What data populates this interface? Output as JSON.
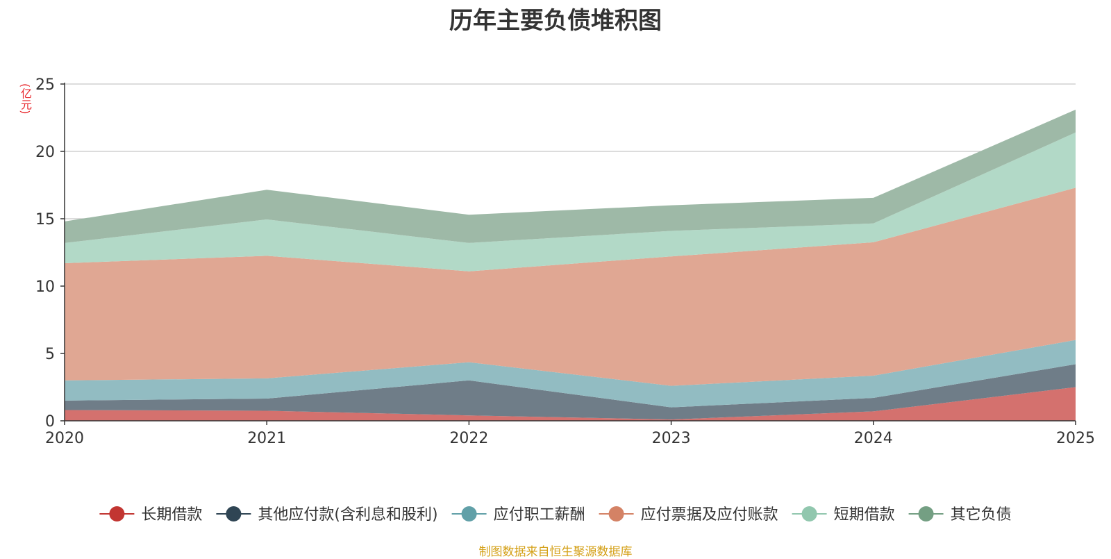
{
  "chart_data": {
    "type": "area",
    "stacked": true,
    "title": "历年主要负债堆积图",
    "ylabel": "(亿元)",
    "x": [
      "2020",
      "2021",
      "2022",
      "2023",
      "2024",
      "2025"
    ],
    "yticks": [
      "0",
      "5",
      "10",
      "15",
      "20",
      "25"
    ],
    "ylim": [
      0,
      25
    ],
    "grid": true,
    "legend_position": "bottom",
    "series": [
      {
        "name": "长期借款",
        "color": "#c23531",
        "area_color": "#d4716e",
        "values": [
          0.8,
          0.75,
          0.4,
          0.1,
          0.7,
          2.5
        ]
      },
      {
        "name": "其他应付款(含利息和股利)",
        "color": "#2f4554",
        "area_color": "#6f7d88",
        "values": [
          0.7,
          0.9,
          2.6,
          0.9,
          1.0,
          1.7
        ]
      },
      {
        "name": "应付职工薪酬",
        "color": "#61a0a8",
        "area_color": "#92bcc2",
        "values": [
          1.5,
          1.5,
          1.35,
          1.6,
          1.65,
          1.8
        ]
      },
      {
        "name": "应付票据及应付账款",
        "color": "#d48265",
        "area_color": "#e0a793",
        "values": [
          8.7,
          9.1,
          6.75,
          9.6,
          9.9,
          11.3
        ]
      },
      {
        "name": "短期借款",
        "color": "#91c7ae",
        "area_color": "#b2d9c7",
        "values": [
          1.5,
          2.7,
          2.1,
          1.9,
          1.4,
          4.1
        ]
      },
      {
        "name": "其它负债",
        "color": "#749f83",
        "area_color": "#9eb9a7",
        "values": [
          1.6,
          2.2,
          2.1,
          1.9,
          1.9,
          1.7
        ]
      }
    ]
  },
  "footer": {
    "source": "制图数据来自恒生聚源数据库"
  }
}
